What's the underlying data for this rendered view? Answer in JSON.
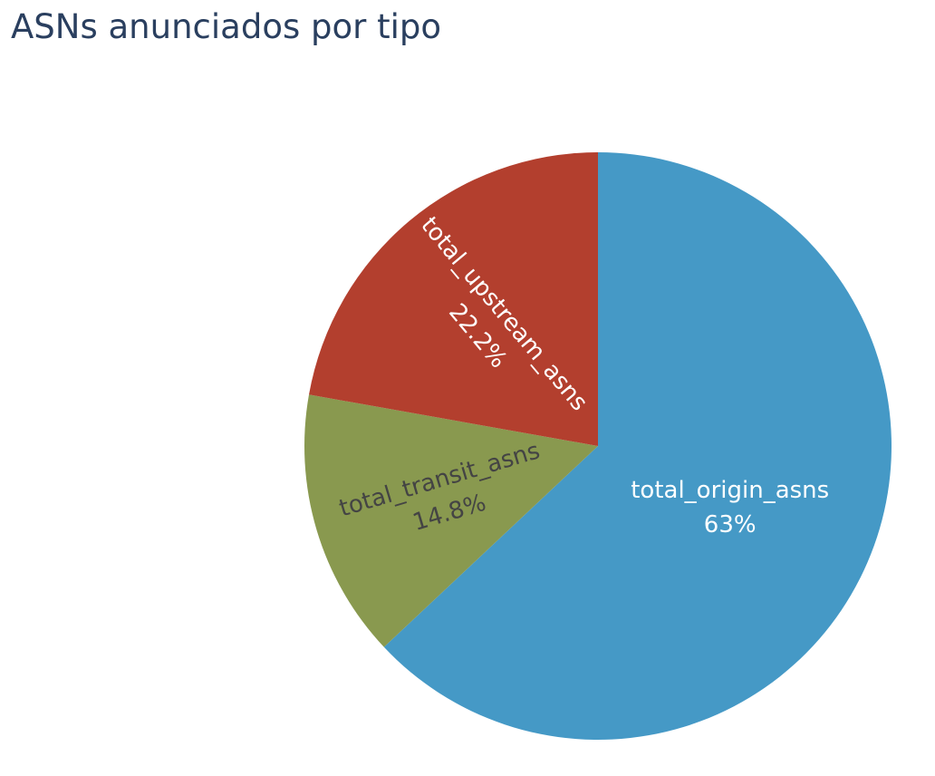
{
  "chart_data": {
    "type": "pie",
    "title": "ASNs anunciados por tipo",
    "slices": [
      {
        "label": "total_origin_asns",
        "percent_label": "63%",
        "value": 63.0,
        "color": "#4599c6",
        "text_color": "#ffffff"
      },
      {
        "label": "total_transit_asns",
        "percent_label": "14.8%",
        "value": 14.8,
        "color": "#89994f",
        "text_color": "#444444"
      },
      {
        "label": "total_upstream_asns",
        "percent_label": "22.2%",
        "value": 22.2,
        "color": "#b33f2e",
        "text_color": "#ffffff"
      }
    ],
    "direction": "clockwise",
    "start": "12 o'clock",
    "legend": "none"
  }
}
